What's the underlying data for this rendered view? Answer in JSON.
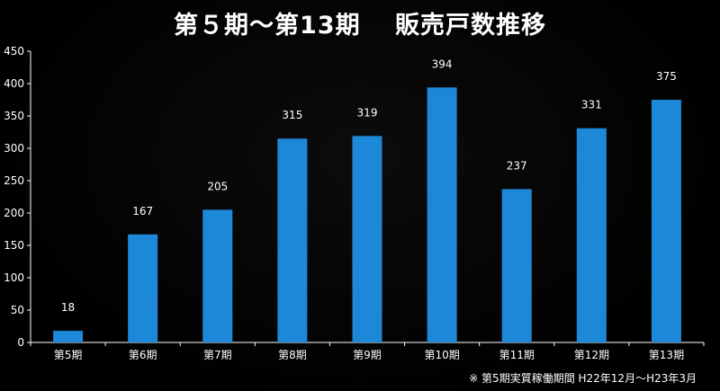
{
  "chart_data": {
    "type": "bar",
    "title": "第５期～第13期　 販売戸数推移",
    "categories": [
      "第5期",
      "第6期",
      "第7期",
      "第8期",
      "第9期",
      "第10期",
      "第11期",
      "第12期",
      "第13期"
    ],
    "series": [
      {
        "values": [
          18,
          167,
          205,
          315,
          319,
          394,
          237,
          331,
          375
        ]
      }
    ],
    "data_labels": [
      "18",
      "167",
      "205",
      "315",
      "319",
      "394",
      "237",
      "331",
      "375"
    ],
    "yticks": [
      "0",
      "50",
      "100",
      "150",
      "200",
      "250",
      "300",
      "350",
      "400",
      "450"
    ],
    "ylim": [
      0,
      450
    ],
    "grid": false,
    "legend": "none",
    "xlabel": "",
    "ylabel": "",
    "footnote": "※ 第5期実質稼働期間 H22年12月～H23年3月",
    "colors": {
      "bar": "#1e88d8",
      "background": "#000000",
      "text": "#ffffff",
      "axis": "#ffffff"
    }
  }
}
